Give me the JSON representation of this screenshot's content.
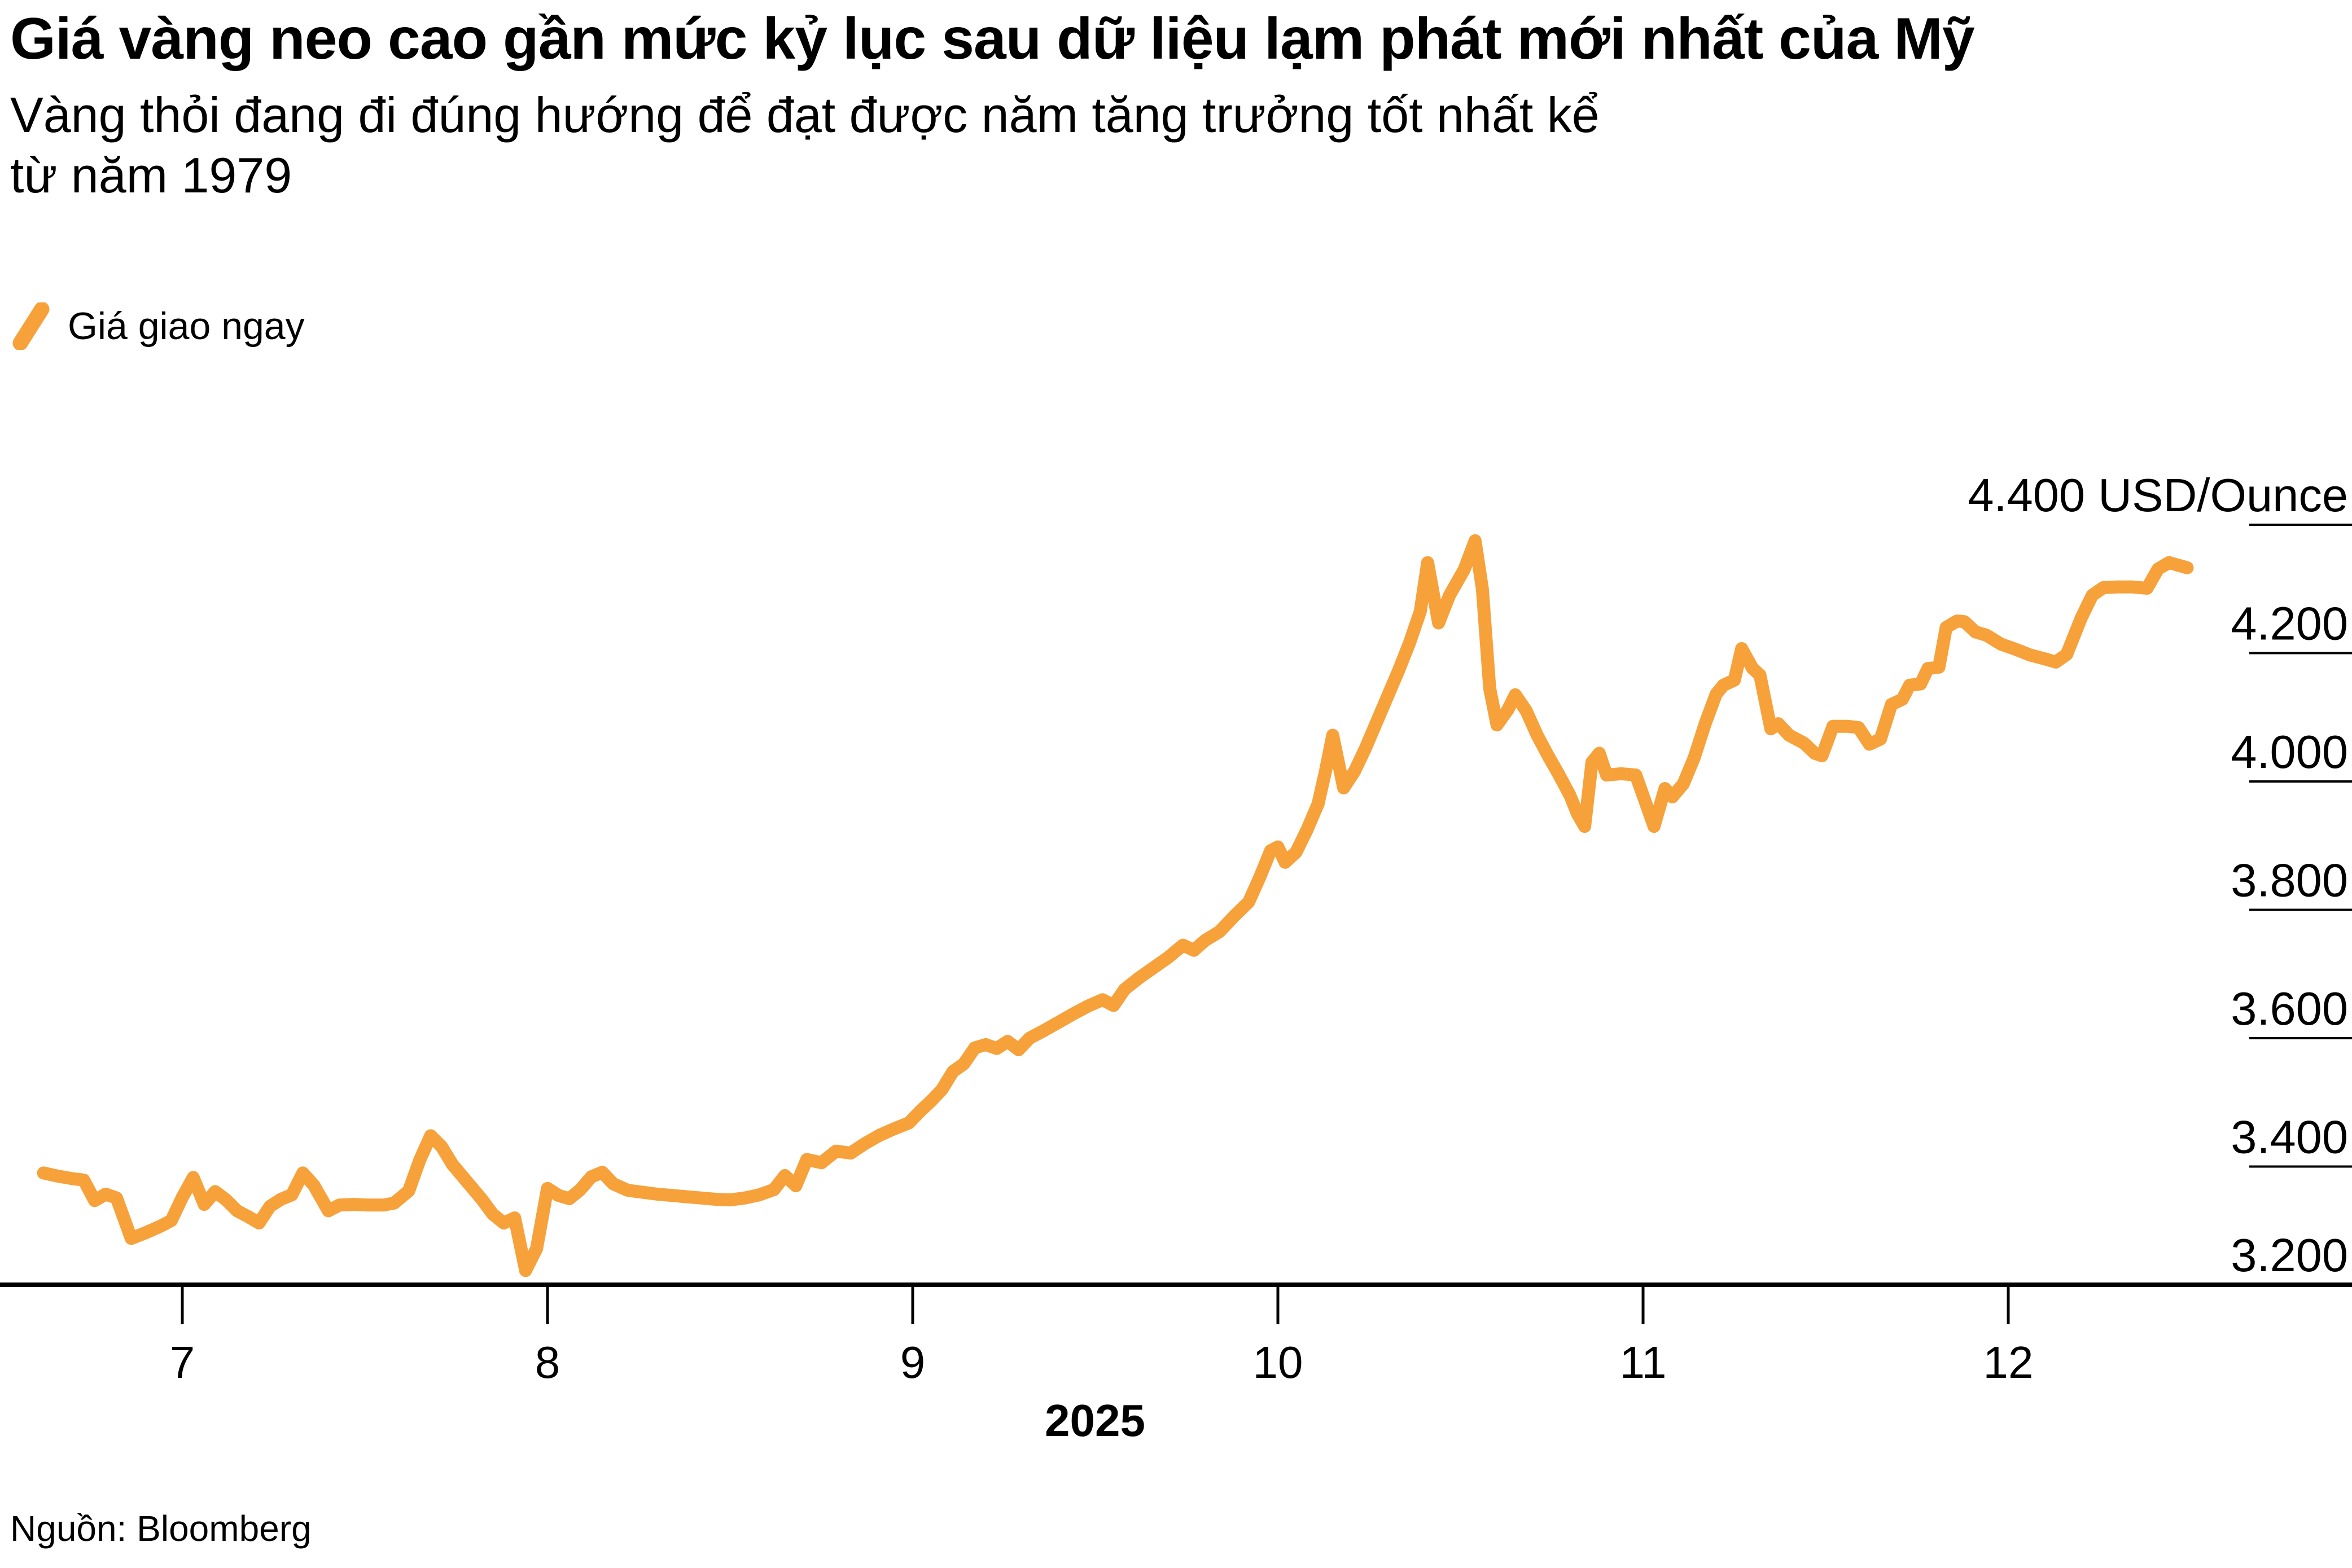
{
  "title": "Giá vàng neo cao gần mức kỷ lục sau dữ liệu lạm phát mới nhất của Mỹ",
  "subtitle_lines": [
    "Vàng thỏi đang đi đúng hướng để đạt được năm tăng trưởng tốt nhất kể",
    "từ năm 1979"
  ],
  "legend": {
    "label": "Giá giao ngay"
  },
  "source": "Nguồn: Bloomberg",
  "colors": {
    "line": "#F7A13B",
    "axis": "#000000",
    "text": "#000000",
    "background": "#FFFFFF"
  },
  "chart_data": {
    "type": "line",
    "unit": "USD/Ounce",
    "legend_position": "top-left",
    "grid": "right-ticks-only",
    "ylim": [
      3200,
      4400
    ],
    "y_ticks": [
      {
        "v": 4400,
        "label": "4.400 USD/Ounce"
      },
      {
        "v": 4200,
        "label": "4.200"
      },
      {
        "v": 4000,
        "label": "4.000"
      },
      {
        "v": 3800,
        "label": "3.800"
      },
      {
        "v": 3600,
        "label": "3.600"
      },
      {
        "v": 3400,
        "label": "3.400"
      },
      {
        "v": 3200,
        "label": "3.200"
      }
    ],
    "x_ticks": [
      {
        "m": 7,
        "label": "7"
      },
      {
        "m": 8,
        "label": "8"
      },
      {
        "m": 9,
        "label": "9"
      },
      {
        "m": 10,
        "label": "10"
      },
      {
        "m": 11,
        "label": "11"
      },
      {
        "m": 12,
        "label": "12"
      }
    ],
    "year_label": "2025",
    "series": [
      {
        "name": "Giá giao ngay",
        "color": "#F7A13B",
        "points": [
          [
            6.62,
            3390
          ],
          [
            6.66,
            3385
          ],
          [
            6.7,
            3381
          ],
          [
            6.73,
            3379
          ],
          [
            6.76,
            3347
          ],
          [
            6.79,
            3357
          ],
          [
            6.82,
            3351
          ],
          [
            6.86,
            3288
          ],
          [
            6.9,
            3297
          ],
          [
            6.94,
            3307
          ],
          [
            6.97,
            3316
          ],
          [
            7.0,
            3352
          ],
          [
            7.03,
            3383
          ],
          [
            7.06,
            3341
          ],
          [
            7.09,
            3361
          ],
          [
            7.12,
            3348
          ],
          [
            7.15,
            3331
          ],
          [
            7.18,
            3322
          ],
          [
            7.21,
            3312
          ],
          [
            7.24,
            3338
          ],
          [
            7.27,
            3349
          ],
          [
            7.3,
            3356
          ],
          [
            7.33,
            3390
          ],
          [
            7.36,
            3371
          ],
          [
            7.4,
            3331
          ],
          [
            7.43,
            3340
          ],
          [
            7.47,
            3341
          ],
          [
            7.51,
            3340
          ],
          [
            7.55,
            3340
          ],
          [
            7.58,
            3343
          ],
          [
            7.62,
            3362
          ],
          [
            7.65,
            3410
          ],
          [
            7.68,
            3448
          ],
          [
            7.71,
            3431
          ],
          [
            7.74,
            3403
          ],
          [
            7.78,
            3376
          ],
          [
            7.82,
            3349
          ],
          [
            7.85,
            3326
          ],
          [
            7.88,
            3312
          ],
          [
            7.91,
            3320
          ],
          [
            7.94,
            3238
          ],
          [
            7.97,
            3272
          ],
          [
            8.0,
            3366
          ],
          [
            8.03,
            3355
          ],
          [
            8.06,
            3350
          ],
          [
            8.09,
            3364
          ],
          [
            8.12,
            3384
          ],
          [
            8.15,
            3391
          ],
          [
            8.18,
            3373
          ],
          [
            8.22,
            3363
          ],
          [
            8.26,
            3360
          ],
          [
            8.3,
            3357
          ],
          [
            8.34,
            3355
          ],
          [
            8.38,
            3353
          ],
          [
            8.42,
            3351
          ],
          [
            8.46,
            3349
          ],
          [
            8.5,
            3348
          ],
          [
            8.54,
            3351
          ],
          [
            8.58,
            3356
          ],
          [
            8.62,
            3364
          ],
          [
            8.65,
            3386
          ],
          [
            8.68,
            3370
          ],
          [
            8.71,
            3411
          ],
          [
            8.75,
            3406
          ],
          [
            8.79,
            3424
          ],
          [
            8.83,
            3421
          ],
          [
            8.87,
            3436
          ],
          [
            8.91,
            3449
          ],
          [
            8.95,
            3459
          ],
          [
            8.99,
            3468
          ],
          [
            9.02,
            3486
          ],
          [
            9.05,
            3502
          ],
          [
            9.08,
            3520
          ],
          [
            9.11,
            3548
          ],
          [
            9.14,
            3560
          ],
          [
            9.17,
            3585
          ],
          [
            9.2,
            3590
          ],
          [
            9.23,
            3584
          ],
          [
            9.26,
            3595
          ],
          [
            9.29,
            3582
          ],
          [
            9.32,
            3600
          ],
          [
            9.36,
            3612
          ],
          [
            9.4,
            3625
          ],
          [
            9.44,
            3638
          ],
          [
            9.48,
            3650
          ],
          [
            9.52,
            3660
          ],
          [
            9.55,
            3651
          ],
          [
            9.58,
            3676
          ],
          [
            9.62,
            3694
          ],
          [
            9.66,
            3710
          ],
          [
            9.7,
            3726
          ],
          [
            9.74,
            3745
          ],
          [
            9.77,
            3737
          ],
          [
            9.8,
            3752
          ],
          [
            9.84,
            3766
          ],
          [
            9.88,
            3790
          ],
          [
            9.92,
            3812
          ],
          [
            9.95,
            3850
          ],
          [
            9.98,
            3892
          ],
          [
            10.0,
            3898
          ],
          [
            10.02,
            3874
          ],
          [
            10.05,
            3890
          ],
          [
            10.08,
            3925
          ],
          [
            10.11,
            3965
          ],
          [
            10.13,
            4015
          ],
          [
            10.15,
            4072
          ],
          [
            10.18,
            3990
          ],
          [
            10.21,
            4016
          ],
          [
            10.24,
            4052
          ],
          [
            10.27,
            4092
          ],
          [
            10.3,
            4132
          ],
          [
            10.33,
            4172
          ],
          [
            10.36,
            4215
          ],
          [
            10.39,
            4265
          ],
          [
            10.41,
            4341
          ],
          [
            10.44,
            4247
          ],
          [
            10.47,
            4290
          ],
          [
            10.51,
            4330
          ],
          [
            10.54,
            4375
          ],
          [
            10.56,
            4300
          ],
          [
            10.58,
            4145
          ],
          [
            10.6,
            4088
          ],
          [
            10.63,
            4112
          ],
          [
            10.65,
            4135
          ],
          [
            10.68,
            4110
          ],
          [
            10.71,
            4072
          ],
          [
            10.74,
            4040
          ],
          [
            10.77,
            4010
          ],
          [
            10.8,
            3978
          ],
          [
            10.82,
            3950
          ],
          [
            10.84,
            3930
          ],
          [
            10.86,
            4030
          ],
          [
            10.88,
            4044
          ],
          [
            10.9,
            4010
          ],
          [
            10.94,
            4012
          ],
          [
            10.98,
            4010
          ],
          [
            11.01,
            3962
          ],
          [
            11.03,
            3930
          ],
          [
            11.06,
            3989
          ],
          [
            11.08,
            3976
          ],
          [
            11.11,
            3996
          ],
          [
            11.14,
            4037
          ],
          [
            11.17,
            4090
          ],
          [
            11.2,
            4136
          ],
          [
            11.22,
            4150
          ],
          [
            11.25,
            4158
          ],
          [
            11.27,
            4207
          ],
          [
            11.3,
            4176
          ],
          [
            11.32,
            4166
          ],
          [
            11.35,
            4082
          ],
          [
            11.37,
            4090
          ],
          [
            11.4,
            4072
          ],
          [
            11.44,
            4060
          ],
          [
            11.47,
            4044
          ],
          [
            11.49,
            4040
          ],
          [
            11.52,
            4086
          ],
          [
            11.56,
            4086
          ],
          [
            11.59,
            4084
          ],
          [
            11.62,
            4058
          ],
          [
            11.65,
            4066
          ],
          [
            11.68,
            4120
          ],
          [
            11.71,
            4128
          ],
          [
            11.73,
            4150
          ],
          [
            11.76,
            4152
          ],
          [
            11.78,
            4176
          ],
          [
            11.81,
            4178
          ],
          [
            11.83,
            4240
          ],
          [
            11.86,
            4250
          ],
          [
            11.88,
            4249
          ],
          [
            11.91,
            4233
          ],
          [
            11.94,
            4228
          ],
          [
            11.98,
            4214
          ],
          [
            12.02,
            4206
          ],
          [
            12.06,
            4197
          ],
          [
            12.1,
            4191
          ],
          [
            12.13,
            4186
          ],
          [
            12.16,
            4198
          ],
          [
            12.2,
            4255
          ],
          [
            12.23,
            4290
          ],
          [
            12.26,
            4302
          ],
          [
            12.3,
            4303
          ],
          [
            12.34,
            4303
          ],
          [
            12.38,
            4301
          ],
          [
            12.41,
            4331
          ],
          [
            12.44,
            4341
          ],
          [
            12.49,
            4333
          ]
        ]
      }
    ]
  }
}
